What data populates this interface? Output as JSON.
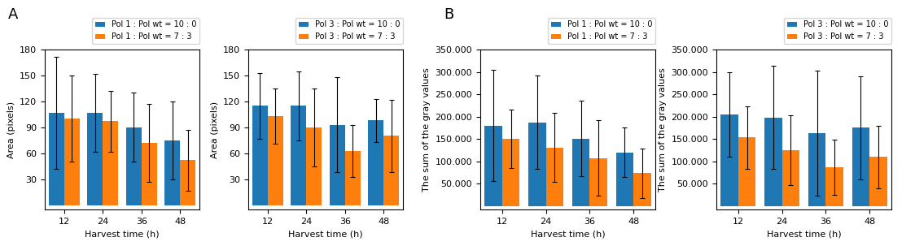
{
  "chart_data": [
    {
      "type": "bar",
      "annotations": [
        "A"
      ],
      "x_label": "Harvest time (h)",
      "y_label": "Area (pixels)",
      "categories": [
        "12",
        "24",
        "36",
        "48"
      ],
      "series": [
        {
          "name": "Pol 1 : Pol wt = 10 : 0",
          "values": [
            107,
            107,
            90,
            75
          ],
          "errors": [
            65,
            45,
            40,
            45
          ]
        },
        {
          "name": "Pol 1 : Pol wt = 7 : 3",
          "values": [
            100,
            97,
            72,
            52
          ],
          "errors": [
            50,
            35,
            45,
            35
          ]
        }
      ],
      "ylim": [
        -5,
        180
      ],
      "yticks": [
        30,
        60,
        90,
        120,
        150,
        180
      ],
      "legend": "upper right",
      "grid": false
    },
    {
      "type": "bar",
      "x_label": "Harvest time (h)",
      "y_label": "Area (pixels)",
      "categories": [
        "12",
        "24",
        "36",
        "48"
      ],
      "series": [
        {
          "name": "Pol 3 : Pol wt = 10 : 0",
          "values": [
            115,
            115,
            93,
            98
          ],
          "errors": [
            38,
            40,
            55,
            25
          ]
        },
        {
          "name": "Pol 3 : Pol wt = 7 : 3",
          "values": [
            103,
            90,
            63,
            80
          ],
          "errors": [
            32,
            45,
            30,
            42
          ]
        }
      ],
      "ylim": [
        -5,
        180
      ],
      "yticks": [
        30,
        60,
        90,
        120,
        150,
        180
      ],
      "legend": "upper right",
      "grid": false
    },
    {
      "type": "bar",
      "annotations": [
        "B"
      ],
      "x_label": "Harvest time (h)",
      "y_label": "The sum of the gray values",
      "categories": [
        "12",
        "24",
        "36",
        "48"
      ],
      "series": [
        {
          "name": "Pol 1 : Pol wt = 10 : 0",
          "values": [
            180000,
            187000,
            151000,
            120000
          ],
          "errors": [
            125000,
            105000,
            85000,
            55000
          ]
        },
        {
          "name": "Pol 1 : Pol wt = 7 : 3",
          "values": [
            150000,
            131000,
            107000,
            73000
          ],
          "errors": [
            65000,
            78000,
            85000,
            55000
          ]
        }
      ],
      "ylim": [
        -8000,
        350000
      ],
      "yticks": [
        {
          "value": 50000,
          "label": "50.000"
        },
        {
          "value": 100000,
          "label": "100.000"
        },
        {
          "value": 150000,
          "label": "150.000"
        },
        {
          "value": 200000,
          "label": "200.000"
        },
        {
          "value": 250000,
          "label": "250.000"
        },
        {
          "value": 300000,
          "label": "300.000"
        },
        {
          "value": 350000,
          "label": "350.000"
        }
      ],
      "legend": "upper right",
      "grid": false
    },
    {
      "type": "bar",
      "x_label": "Harvest time (h)",
      "y_label": "The sum of the gray values",
      "categories": [
        "12",
        "24",
        "36",
        "48"
      ],
      "series": [
        {
          "name": "Pol 3 : Pol wt = 10 : 0",
          "values": [
            205000,
            198000,
            163000,
            175000
          ],
          "errors": [
            95000,
            115000,
            140000,
            115000
          ]
        },
        {
          "name": "Pol 3 : Pol wt = 7 : 3",
          "values": [
            153000,
            124000,
            87000,
            110000
          ],
          "errors": [
            70000,
            78000,
            62000,
            70000
          ]
        }
      ],
      "ylim": [
        -8000,
        350000
      ],
      "yticks": [
        {
          "value": 50000,
          "label": "50.000"
        },
        {
          "value": 100000,
          "label": "100.000"
        },
        {
          "value": 150000,
          "label": "150.000"
        },
        {
          "value": 200000,
          "label": "200.000"
        },
        {
          "value": 250000,
          "label": "250.000"
        },
        {
          "value": 300000,
          "label": "300.000"
        },
        {
          "value": 350000,
          "label": "350.000"
        }
      ],
      "legend": "upper right",
      "grid": false
    }
  ]
}
